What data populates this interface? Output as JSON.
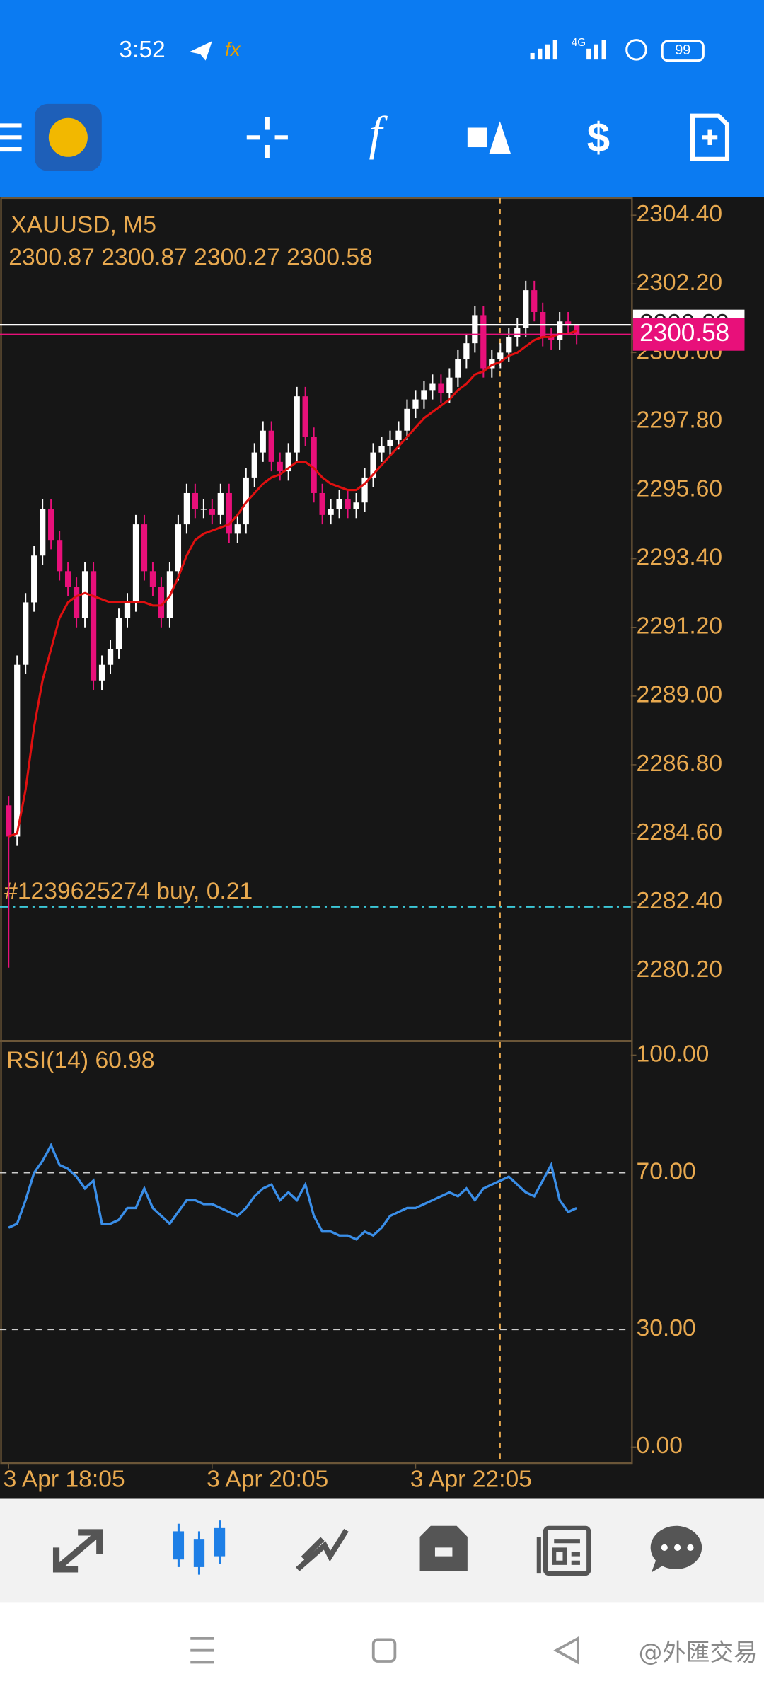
{
  "status_bar": {
    "time": "3:52",
    "network": "4G",
    "battery": "99"
  },
  "chart_data": [
    {
      "type": "candlestick",
      "title": "XAUUSD, M5",
      "up_color": "#ffffff",
      "down_color": "#e8107a",
      "open": [
        2285.5,
        2284.5,
        2290,
        2292,
        2293.5,
        2295,
        2294,
        2293,
        2292.5,
        2291.5,
        2293,
        2289.5,
        2290,
        2290.5,
        2291.5,
        2292,
        2294.5,
        2293,
        2292.5,
        2291.5,
        2293,
        2294.5,
        2295.5,
        2295,
        2295,
        2294.8,
        2295.5,
        2294.2,
        2294.5,
        2296,
        2296.8,
        2297.5,
        2296.5,
        2296.2,
        2296.8,
        2298.6,
        2297.3,
        2295.5,
        2294.8,
        2295,
        2295.3,
        2295,
        2295.2,
        2296,
        2296.8,
        2297,
        2297.2,
        2297.5,
        2298.2,
        2298.5,
        2298.8,
        2299,
        2298.7,
        2299.2,
        2299.8,
        2300.3,
        2301.2,
        2299.5,
        2299.8,
        2300,
        2300.5,
        2300.8,
        2302,
        2301.3,
        2300.5,
        2300.4,
        2301,
        2300.87
      ],
      "high": [
        2285.8,
        2290.3,
        2292.3,
        2293.8,
        2295.3,
        2295.3,
        2294.3,
        2293.3,
        2292.8,
        2293.3,
        2293.3,
        2290.3,
        2290.8,
        2291.8,
        2292.3,
        2294.8,
        2294.8,
        2293.3,
        2292.8,
        2293.3,
        2294.8,
        2295.8,
        2295.8,
        2295.3,
        2295.3,
        2295.8,
        2295.8,
        2294.8,
        2296.3,
        2297.1,
        2297.8,
        2297.8,
        2296.8,
        2297.1,
        2298.9,
        2298.9,
        2297.6,
        2295.8,
        2295.3,
        2295.6,
        2295.6,
        2295.5,
        2296.3,
        2297.1,
        2297.3,
        2297.5,
        2297.8,
        2298.5,
        2298.8,
        2299.1,
        2299.3,
        2299.3,
        2299.5,
        2300.1,
        2300.6,
        2301.5,
        2301.5,
        2300.1,
        2300.3,
        2300.8,
        2301.1,
        2302.3,
        2302.3,
        2301.6,
        2300.8,
        2301.3,
        2301.3,
        2300.87
      ],
      "low": [
        2280.3,
        2284.2,
        2289.7,
        2291.7,
        2293.2,
        2293.7,
        2292.7,
        2292.2,
        2291.2,
        2291.2,
        2289.2,
        2289.2,
        2289.7,
        2290.2,
        2291.2,
        2291.7,
        2292.7,
        2292.2,
        2291.2,
        2291.2,
        2292.7,
        2294.2,
        2294.7,
        2294.7,
        2294.5,
        2294.5,
        2293.9,
        2293.9,
        2294.2,
        2295.7,
        2296.5,
        2296.2,
        2295.9,
        2295.9,
        2296.5,
        2297.0,
        2295.2,
        2294.5,
        2294.5,
        2294.7,
        2294.7,
        2294.7,
        2294.9,
        2295.7,
        2296.5,
        2296.7,
        2296.9,
        2297.2,
        2297.9,
        2298.2,
        2298.5,
        2298.4,
        2298.4,
        2298.9,
        2299.5,
        2300.0,
        2299.2,
        2299.2,
        2299.5,
        2299.7,
        2300.2,
        2300.5,
        2301.0,
        2300.2,
        2300.1,
        2300.1,
        2300.57,
        2300.27
      ],
      "close": [
        2284.5,
        2290,
        2292,
        2293.5,
        2295,
        2294,
        2293,
        2292.5,
        2291.5,
        2293,
        2289.5,
        2290,
        2290.5,
        2291.5,
        2292,
        2294.5,
        2293,
        2292.5,
        2291.5,
        2293,
        2294.5,
        2295.5,
        2295,
        2295,
        2294.8,
        2295.5,
        2294.2,
        2294.5,
        2296,
        2296.8,
        2297.5,
        2296.5,
        2296.2,
        2296.8,
        2298.6,
        2297.3,
        2295.5,
        2294.8,
        2295,
        2295.3,
        2295,
        2295.2,
        2296,
        2296.8,
        2297,
        2297.2,
        2297.5,
        2298.2,
        2298.5,
        2298.8,
        2299,
        2298.7,
        2299.2,
        2299.8,
        2300.3,
        2301.2,
        2299.5,
        2299.8,
        2300,
        2300.5,
        2300.8,
        2302,
        2301.3,
        2300.5,
        2300.4,
        2301,
        2300.87,
        2300.58
      ],
      "ma": {
        "color": "#e01010",
        "values": [
          2284.5,
          2284.6,
          2286,
          2288,
          2289.5,
          2290.5,
          2291.5,
          2292,
          2292.2,
          2292.3,
          2292.2,
          2292.1,
          2292.0,
          2292.0,
          2292.0,
          2292.0,
          2292.0,
          2291.9,
          2291.9,
          2292.2,
          2292.8,
          2293.5,
          2294.0,
          2294.2,
          2294.3,
          2294.4,
          2294.5,
          2294.8,
          2295.2,
          2295.5,
          2295.8,
          2296.0,
          2296.1,
          2296.3,
          2296.5,
          2296.5,
          2296.3,
          2296.0,
          2295.8,
          2295.7,
          2295.6,
          2295.6,
          2295.8,
          2296.1,
          2296.4,
          2296.7,
          2297.0,
          2297.3,
          2297.6,
          2297.9,
          2298.1,
          2298.3,
          2298.5,
          2298.8,
          2299.0,
          2299.3,
          2299.4,
          2299.6,
          2299.7,
          2299.9,
          2300.0,
          2300.2,
          2300.4,
          2300.5,
          2300.5,
          2300.6,
          2300.6,
          2300.7
        ]
      },
      "ask": 2300.89,
      "order_label": "#1239625274 buy, 0.21",
      "order_price": 2282.25,
      "xlim": [
        -1.02,
        73.4
      ],
      "ylim": [
        2277.95,
        2304.95
      ],
      "yticks": [
        {
          "value": 2304.4,
          "label": "2304.40"
        },
        {
          "value": 2302.2,
          "label": "2302.20"
        },
        {
          "value": 2300,
          "label": "2300.00"
        },
        {
          "value": 2297.8,
          "label": "2297.80"
        },
        {
          "value": 2295.6,
          "label": "2295.60"
        },
        {
          "value": 2293.4,
          "label": "2293.40"
        },
        {
          "value": 2291.2,
          "label": "2291.20"
        },
        {
          "value": 2289,
          "label": "2289.00"
        },
        {
          "value": 2286.8,
          "label": "2286.80"
        },
        {
          "value": 2284.6,
          "label": "2284.60"
        },
        {
          "value": 2282.4,
          "label": "2282.40"
        },
        {
          "value": 2280.2,
          "label": "2280.20"
        }
      ],
      "xticks": [
        {
          "value": 0,
          "label": "3 Apr 18:05"
        },
        {
          "value": 24,
          "label": "3 Apr 20:05"
        },
        {
          "value": 48,
          "label": "3 Apr 22:05"
        }
      ]
    },
    {
      "type": "line",
      "title": "RSI(14)",
      "color": "#3a8ee8",
      "values": [
        56,
        57,
        63,
        70,
        73,
        77,
        72,
        71,
        69,
        66,
        68,
        57,
        57,
        58,
        61,
        61,
        66,
        61,
        59,
        57,
        60,
        63,
        63,
        62,
        62,
        61,
        60,
        59,
        61,
        64,
        66,
        67,
        63,
        65,
        63,
        67,
        59,
        55,
        55,
        54,
        54,
        53,
        55,
        54,
        56,
        59,
        60,
        61,
        61,
        62,
        63,
        64,
        65,
        64,
        66,
        63,
        66,
        67,
        68,
        69,
        67,
        65,
        64,
        68,
        72,
        63,
        60,
        60.98
      ],
      "ylim": [
        -4.1,
        103.6
      ],
      "yticks": [
        {
          "value": 100,
          "label": "100.00"
        },
        {
          "value": 70,
          "label": "70.00"
        },
        {
          "value": 30,
          "label": "30.00"
        },
        {
          "value": 0,
          "label": "0.00"
        }
      ]
    }
  ],
  "watermark": "@外匯交易"
}
